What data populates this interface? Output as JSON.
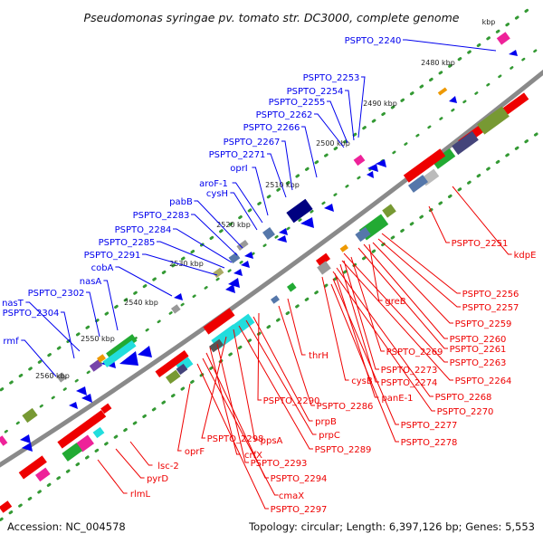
{
  "title": "Pseudomonas syringae pv. tomato str. DC3000, complete genome",
  "footer": {
    "accession": "Accession: NC_004578",
    "summary": "Topology: circular; Length: 6,397,126 bp; Genes: 5,553"
  },
  "scale_unit": "kbp",
  "colors": {
    "plus_strand": "#0000ee",
    "minus_strand": "#ee0000",
    "backbone": "#909090",
    "tick_dots": "#339933"
  },
  "ticks": [
    {
      "kbp": 2480,
      "label": "2480 kbp"
    },
    {
      "kbp": 2490,
      "label": "2490 kbp"
    },
    {
      "kbp": 2500,
      "label": "2500 kbp"
    },
    {
      "kbp": 2510,
      "label": "2510 kbp"
    },
    {
      "kbp": 2520,
      "label": "2520 kbp"
    },
    {
      "kbp": 2530,
      "label": "2530 kbp"
    },
    {
      "kbp": 2540,
      "label": "2540 kbp"
    },
    {
      "kbp": 2550,
      "label": "2550 kbp"
    },
    {
      "kbp": 2560,
      "label": "2560 kbp"
    }
  ],
  "plus_labels": [
    "PSPTO_2240",
    "PSPTO_2253",
    "PSPTO_2254",
    "PSPTO_2255",
    "PSPTO_2262",
    "PSPTO_2266",
    "PSPTO_2267",
    "PSPTO_2271",
    "oprI",
    "aroF-1",
    "cysH",
    "pabB",
    "PSPTO_2283",
    "PSPTO_2284",
    "PSPTO_2285",
    "PSPTO_2291",
    "cobA",
    "nasA",
    "PSPTO_2302",
    "nasT",
    "PSPTO_2304",
    "rmf"
  ],
  "minus_labels": [
    "PSPTO_2251",
    "kdpE",
    "PSPTO_2256",
    "PSPTO_2257",
    "PSPTO_2259",
    "PSPTO_2260",
    "PSPTO_2261",
    "PSPTO_2263",
    "PSPTO_2264",
    "PSPTO_2268",
    "PSPTO_2270",
    "greB",
    "PSPTO_2269",
    "PSPTO_2273",
    "PSPTO_2274",
    "panE-1",
    "PSPTO_2277",
    "PSPTO_2278",
    "cysB",
    "thrH",
    "PSPTO_2286",
    "PSPTO_2290",
    "prpB",
    "prpC",
    "PSPTO_2289",
    "ppsA",
    "PSPTO_2298",
    "PSPTO_2293",
    "crfX",
    "PSPTO_2294",
    "cmaX",
    "PSPTO_2297",
    "oprF",
    "lsc-2",
    "pyrD",
    "rlmL"
  ]
}
